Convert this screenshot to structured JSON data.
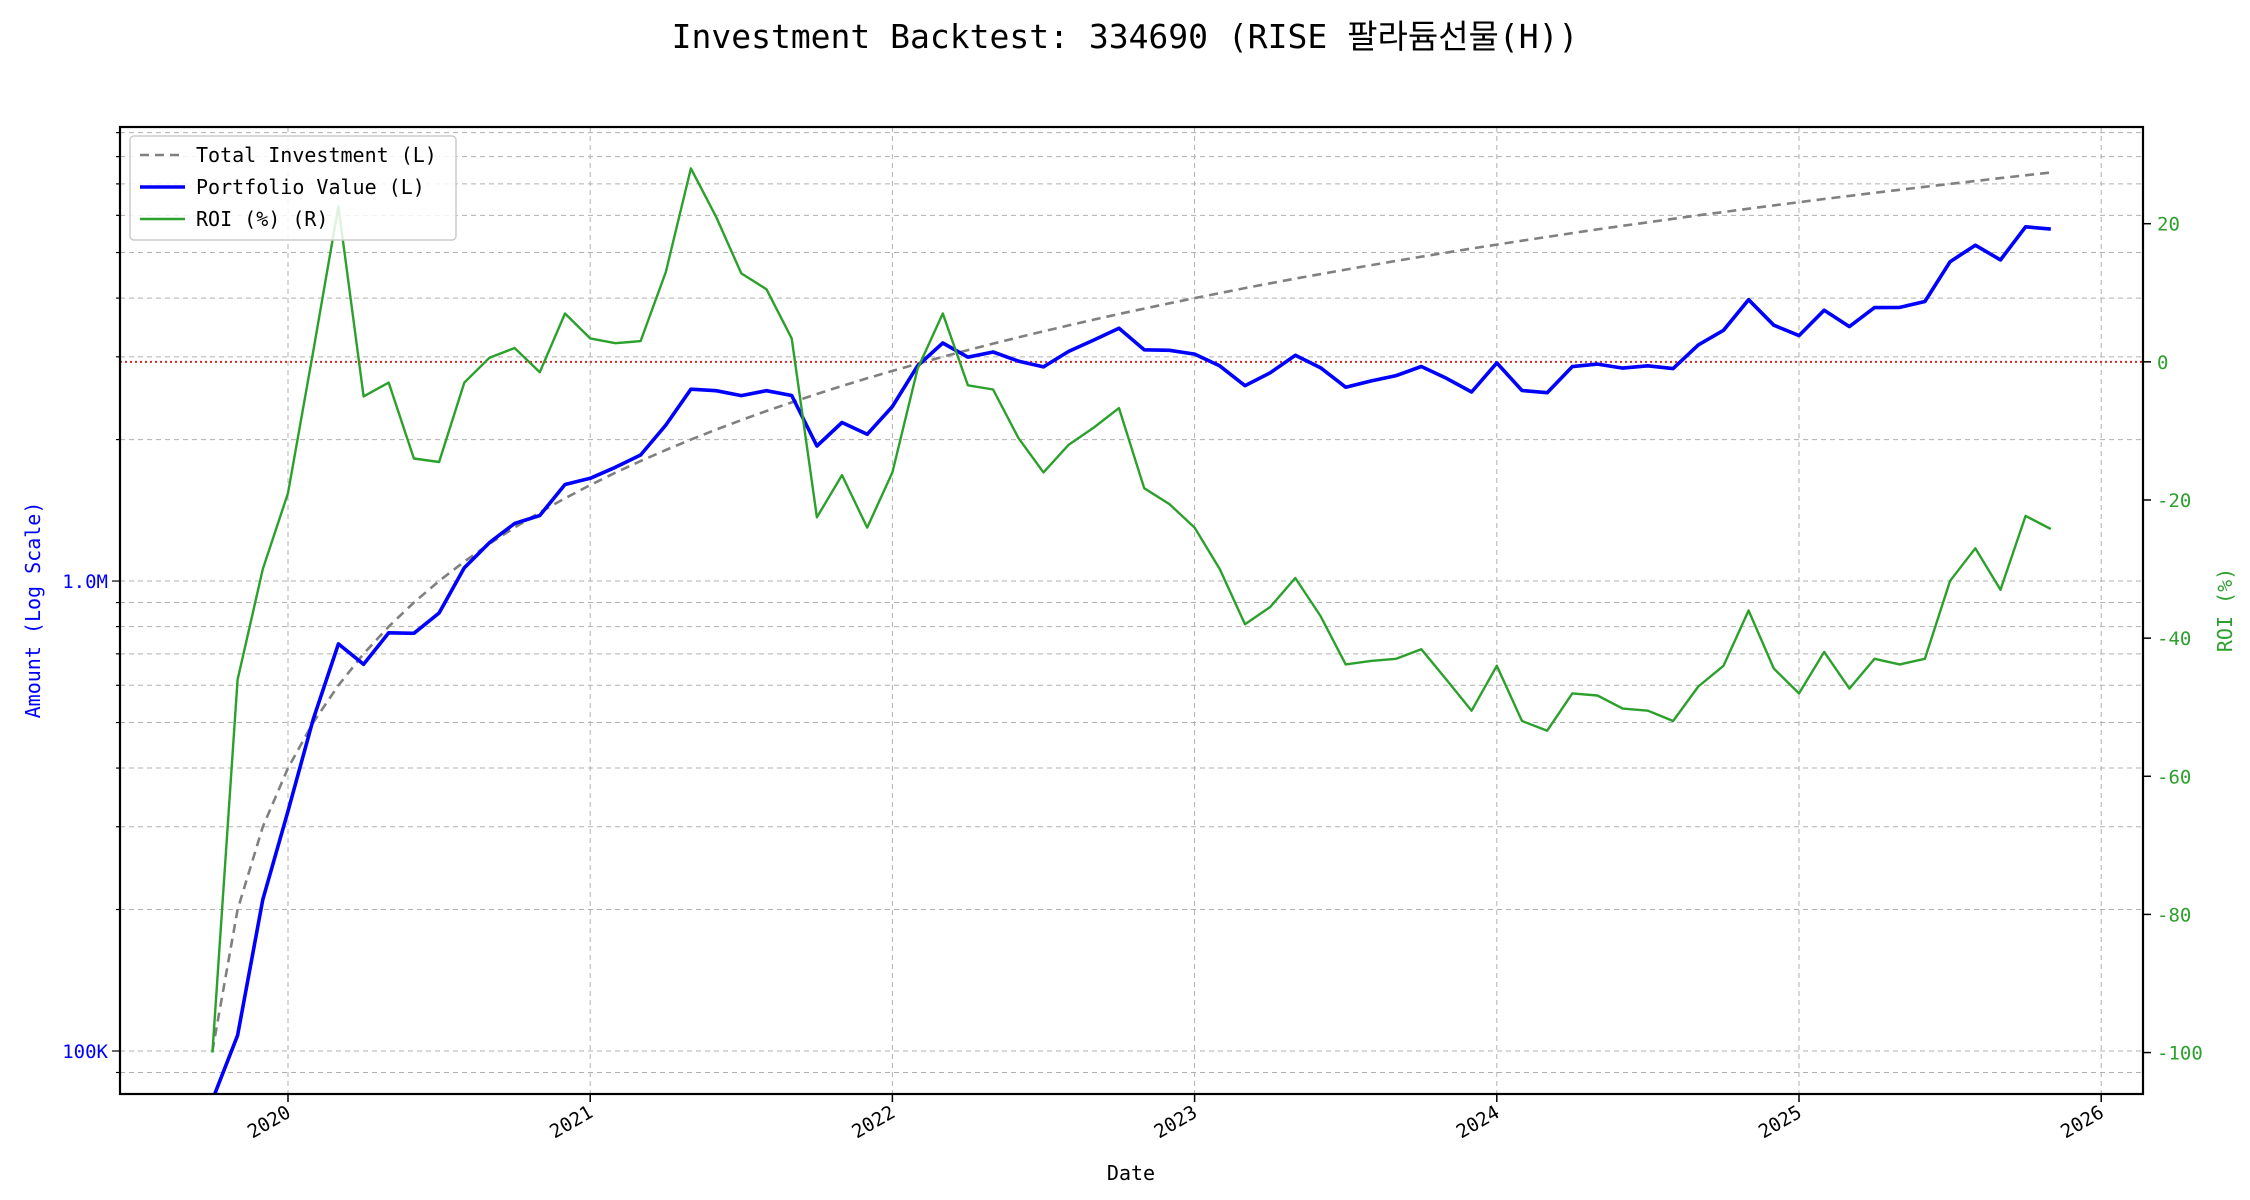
{
  "chart_data": {
    "type": "line",
    "title": "Investment Backtest: 334690 (RISE 팔라듐선물(H))",
    "xlabel": "Date",
    "ylabel_left": "Amount (Log Scale)",
    "ylabel_right": "ROI (%)",
    "start_month": "2019-10",
    "frequency": "monthly",
    "x_ticks": [
      "2020",
      "2021",
      "2022",
      "2023",
      "2024",
      "2025",
      "2026"
    ],
    "left_scale": "log",
    "left_ylim": [
      81000,
      9250000
    ],
    "left_tick_labels": [
      {
        "value": 100000,
        "label": "100K"
      },
      {
        "value": 1000000,
        "label": "1.0M"
      }
    ],
    "right_ylim": [
      -106,
      34
    ],
    "right_ticks": [
      20,
      0,
      -20,
      -40,
      -60,
      -80,
      -100
    ],
    "grid": true,
    "legend_position": "top-left",
    "reference_line": {
      "axis": "right",
      "value": 0,
      "color": "#d62728"
    },
    "series": [
      {
        "name": "Total Investment (L)",
        "axis": "left",
        "color": "#808080",
        "style": "dashed",
        "values": [
          100000,
          200000,
          300000,
          400000,
          500000,
          600000,
          700000,
          800000,
          900000,
          1000000,
          1100000,
          1200000,
          1300000,
          1400000,
          1500000,
          1600000,
          1700000,
          1800000,
          1900000,
          2000000,
          2100000,
          2200000,
          2300000,
          2400000,
          2500000,
          2600000,
          2700000,
          2800000,
          2900000,
          3000000,
          3100000,
          3200000,
          3300000,
          3400000,
          3500000,
          3600000,
          3700000,
          3800000,
          3900000,
          4000000,
          4100000,
          4200000,
          4300000,
          4400000,
          4500000,
          4600000,
          4700000,
          4800000,
          4900000,
          5000000,
          5100000,
          5200000,
          5300000,
          5400000,
          5500000,
          5600000,
          5700000,
          5800000,
          5900000,
          6000000,
          6100000,
          6200000,
          6300000,
          6400000,
          6500000,
          6600000,
          6700000,
          6800000,
          6900000,
          7000000,
          7100000,
          7200000,
          7300000,
          7400000
        ]
      },
      {
        "name": "Portfolio Value (L)",
        "axis": "left",
        "color": "#0000ff",
        "style": "solid",
        "values": [
          0,
          108000,
          210000,
          324000,
          508000,
          735000,
          665000,
          776000,
          774000,
          855000,
          1067000,
          1207000,
          1326000,
          1379000,
          1605000,
          1654000,
          1746000,
          1854000,
          2147000,
          2560000,
          2541000,
          2481000,
          2541000,
          2482000,
          1938000,
          2174000,
          2052000,
          2352000,
          2871000,
          3210000,
          2995000,
          3072000,
          2937000,
          2856000,
          3080000,
          3258000,
          3452000,
          3105000,
          3097000,
          3040000,
          2870000,
          2604000,
          2774000,
          3022000,
          2844000,
          2585000,
          2665000,
          2736000,
          2861000,
          2700000,
          2525000,
          2912000,
          2544000,
          2516000,
          2860000,
          2895000,
          2839000,
          2871000,
          2832000,
          3180000,
          3416000,
          3968000,
          3503000,
          3328000,
          3770000,
          3478000,
          3819000,
          3822000,
          3933000,
          4781000,
          5183000,
          4824000,
          5672000,
          5609000
        ]
      },
      {
        "name": "ROI (%) (R)",
        "axis": "right",
        "color": "#2ca02c",
        "style": "solid",
        "values": [
          -100,
          -46,
          -30,
          -19,
          1.5,
          22.5,
          -5,
          -3,
          -14,
          -14.5,
          -3,
          0.6,
          2,
          -1.5,
          7,
          3.4,
          2.7,
          3,
          13,
          28,
          21,
          12.8,
          10.5,
          3.4,
          -22.5,
          -16.4,
          -24,
          -16,
          -1,
          7,
          -3.4,
          -4,
          -11,
          -16,
          -12,
          -9.5,
          -6.7,
          -18.3,
          -20.6,
          -24,
          -30,
          -38,
          -35.5,
          -31.3,
          -36.8,
          -43.8,
          -43.3,
          -43,
          -41.6,
          -46,
          -50.5,
          -44,
          -52,
          -53.4,
          -48,
          -48.3,
          -50.2,
          -50.5,
          -52,
          -47,
          -44,
          -36,
          -44.4,
          -48,
          -42,
          -47.3,
          -43,
          -43.8,
          -43,
          -31.7,
          -27,
          -33,
          -22.3,
          -24.2
        ]
      }
    ]
  }
}
